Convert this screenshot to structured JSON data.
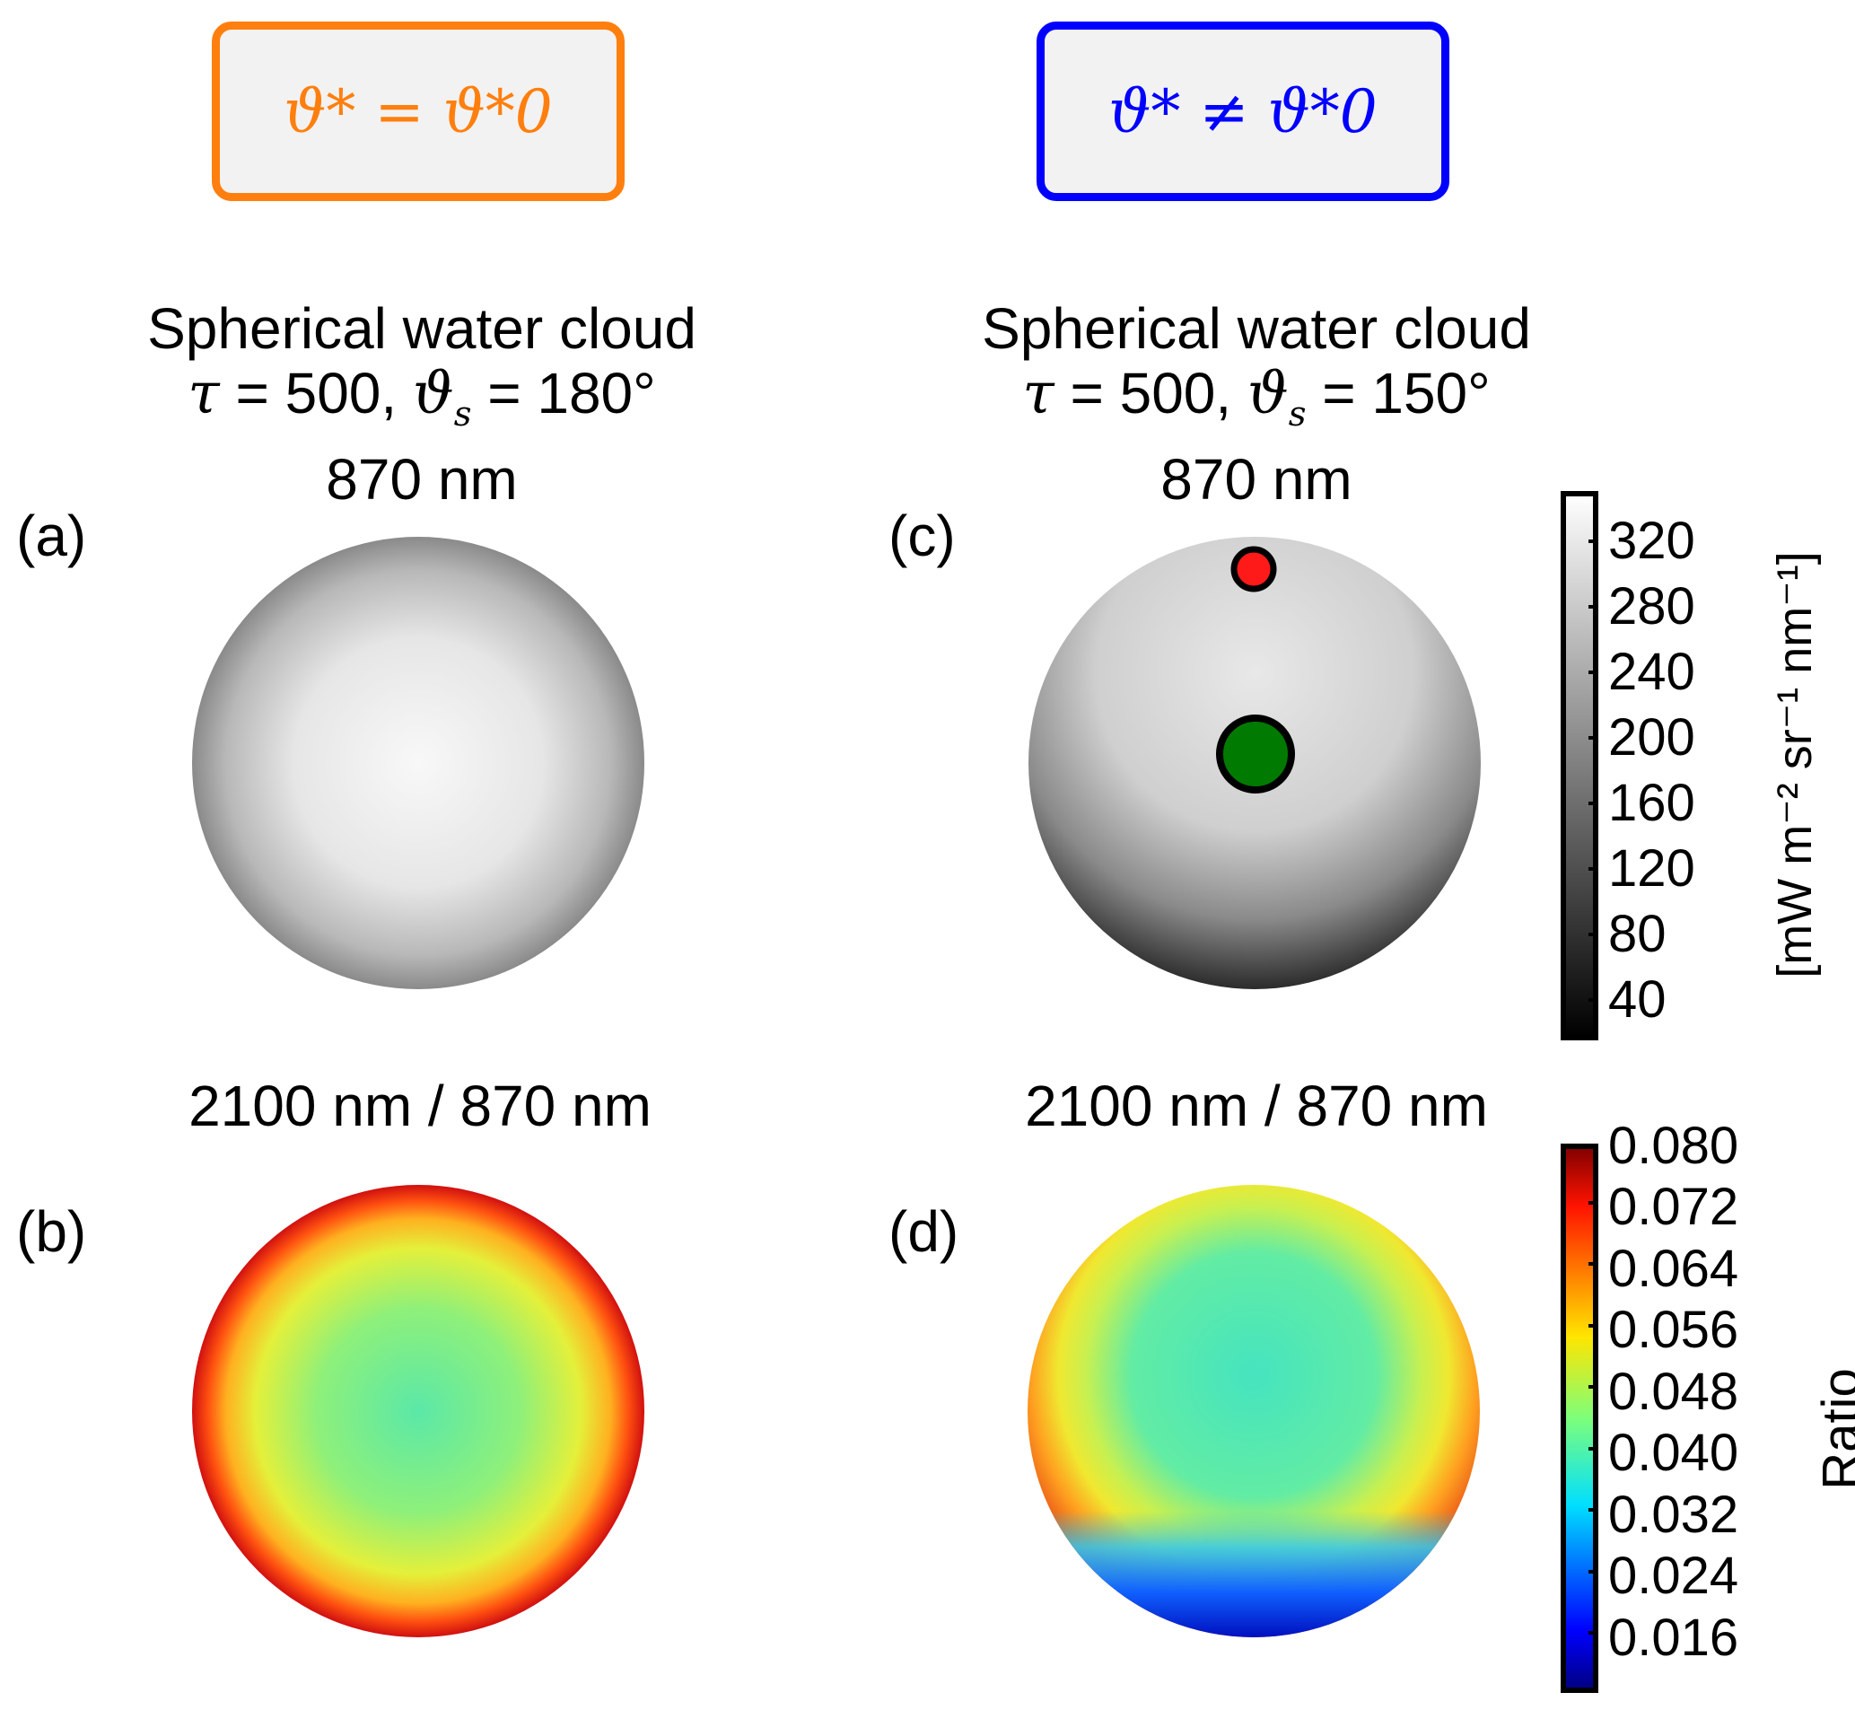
{
  "header_boxes": {
    "left": {
      "text": "ϑ* = ϑ*0",
      "border_color": "#ff7f0e",
      "text_color": "#ff7f0e"
    },
    "right": {
      "text": "ϑ* ≠ ϑ*0",
      "border_color": "#0000ff",
      "text_color": "#0000ff"
    }
  },
  "columns": {
    "left": {
      "title_line1": "Spherical water cloud",
      "title_line2_tau": "τ",
      "title_line2_mid": " = 500, ",
      "title_line2_theta": "ϑ",
      "title_line2_sub": "s",
      "title_line2_end": " = 180°",
      "title_line3": "870 nm",
      "panel_top_label": "(a)",
      "ratio_title": "2100 nm / 870 nm",
      "panel_bottom_label": "(b)"
    },
    "right": {
      "title_line1": "Spherical water cloud",
      "title_line2_tau": "τ",
      "title_line2_mid": " = 500, ",
      "title_line2_theta": "ϑ",
      "title_line2_sub": "s",
      "title_line2_end": " = 150°",
      "title_line3": "870 nm",
      "panel_top_label": "(c)",
      "ratio_title": "2100 nm / 870 nm",
      "panel_bottom_label": "(d)"
    }
  },
  "colorbar_radiance": {
    "ticks": [
      "320",
      "280",
      "240",
      "200",
      "160",
      "120",
      "80",
      "40"
    ],
    "unit_label": "[mW m⁻² sr⁻¹ nm⁻¹]"
  },
  "colorbar_ratio": {
    "ticks": [
      "0.080",
      "0.072",
      "0.064",
      "0.056",
      "0.048",
      "0.040",
      "0.032",
      "0.024",
      "0.016"
    ],
    "label": "Ratio"
  },
  "markers": [
    {
      "color": "#ff0000",
      "name": "red-marker"
    },
    {
      "color": "#007a00",
      "name": "green-marker"
    }
  ]
}
